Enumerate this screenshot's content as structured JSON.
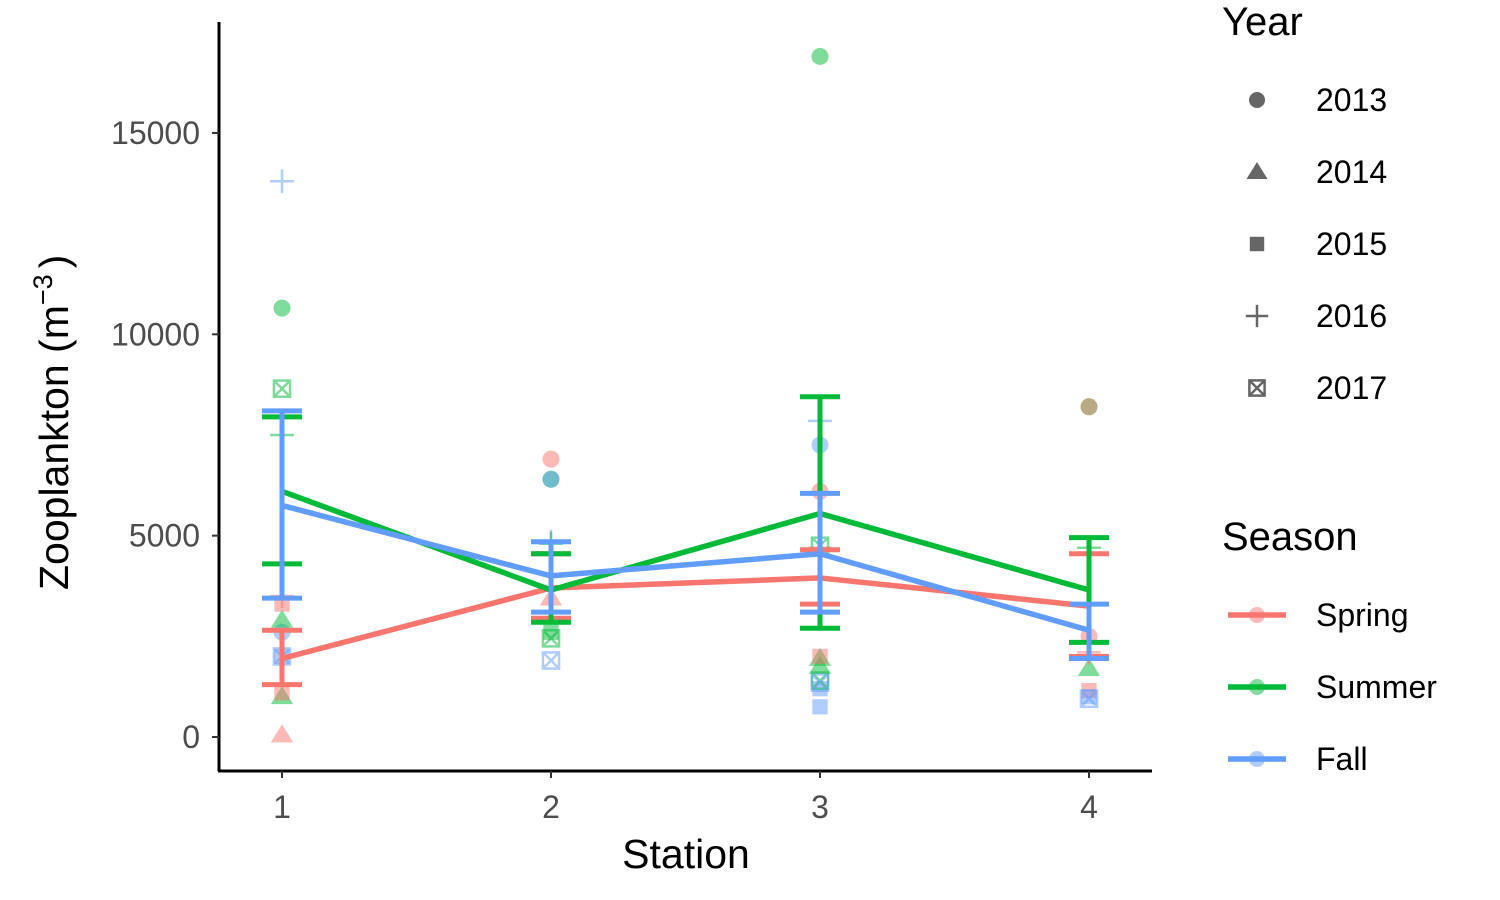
{
  "chart_data": {
    "type": "line",
    "xlabel": "Station",
    "ylabel": "Zooplankton (m",
    "ylabel_sup": "−3",
    "ylabel_close": ")",
    "x_categories": [
      1,
      2,
      3,
      4
    ],
    "ylim": [
      -800,
      17600
    ],
    "y_ticks": [
      0,
      5000,
      10000,
      15000
    ],
    "grid": false,
    "legend_placement": "right",
    "legends": {
      "year": {
        "title": "Year",
        "entries": [
          {
            "label": "2013",
            "shape": "circle"
          },
          {
            "label": "2014",
            "shape": "triangle"
          },
          {
            "label": "2015",
            "shape": "square"
          },
          {
            "label": "2016",
            "shape": "plus"
          },
          {
            "label": "2017",
            "shape": "square-x"
          }
        ]
      },
      "season": {
        "title": "Season",
        "entries": [
          {
            "label": "Spring",
            "color": "#F8766D"
          },
          {
            "label": "Summer",
            "color": "#00BA38"
          },
          {
            "label": "Fall",
            "color": "#619CFF"
          }
        ]
      }
    },
    "series": [
      {
        "name": "Spring",
        "color": "#F8766D",
        "mean": [
          {
            "x": 1,
            "y": 1950
          },
          {
            "x": 2,
            "y": 3700
          },
          {
            "x": 3,
            "y": 3950
          },
          {
            "x": 4,
            "y": 3250
          }
        ],
        "error": [
          {
            "x": 1,
            "low": 1300,
            "high": 2650
          },
          {
            "x": 2,
            "low": 2950,
            "high": 4550
          },
          {
            "x": 3,
            "low": 3300,
            "high": 4650
          },
          {
            "x": 4,
            "low": 2000,
            "high": 4550
          }
        ]
      },
      {
        "name": "Summer",
        "color": "#00BA38",
        "mean": [
          {
            "x": 1,
            "y": 6100
          },
          {
            "x": 2,
            "y": 3650
          },
          {
            "x": 3,
            "y": 5550
          },
          {
            "x": 4,
            "y": 3650
          }
        ],
        "error": [
          {
            "x": 1,
            "low": 4300,
            "high": 7950
          },
          {
            "x": 2,
            "low": 2850,
            "high": 4550
          },
          {
            "x": 3,
            "low": 2700,
            "high": 8450
          },
          {
            "x": 4,
            "low": 2350,
            "high": 4950
          }
        ]
      },
      {
        "name": "Fall",
        "color": "#619CFF",
        "mean": [
          {
            "x": 1,
            "y": 5750
          },
          {
            "x": 2,
            "y": 4000
          },
          {
            "x": 3,
            "y": 4550
          },
          {
            "x": 4,
            "y": 2650
          }
        ],
        "error": [
          {
            "x": 1,
            "low": 3450,
            "high": 8100
          },
          {
            "x": 2,
            "low": 3100,
            "high": 4850
          },
          {
            "x": 3,
            "low": 3100,
            "high": 6050
          },
          {
            "x": 4,
            "low": 1950,
            "high": 3300
          }
        ]
      }
    ],
    "points": [
      {
        "season": "Summer",
        "year": "2013",
        "x": 1,
        "y": 10650
      },
      {
        "season": "Summer",
        "year": "2013",
        "x": 3,
        "y": 16900
      },
      {
        "season": "Summer",
        "year": "2013",
        "x": 4,
        "y": 8200
      },
      {
        "season": "Spring",
        "year": "2013",
        "x": 2,
        "y": 6900
      },
      {
        "season": "Summer",
        "year": "2013",
        "x": 2,
        "y": 6400
      },
      {
        "season": "Fall",
        "year": "2013",
        "x": 2,
        "y": 6400
      },
      {
        "season": "Fall",
        "year": "2013",
        "x": 3,
        "y": 7250
      },
      {
        "season": "Spring",
        "year": "2013",
        "x": 3,
        "y": 6100
      },
      {
        "season": "Spring",
        "year": "2013",
        "x": 4,
        "y": 8200
      },
      {
        "season": "Fall",
        "year": "2013",
        "x": 1,
        "y": 2600
      },
      {
        "season": "Spring",
        "year": "2013",
        "x": 4,
        "y": 2500
      },
      {
        "season": "Spring",
        "year": "2014",
        "x": 1,
        "y": 50
      },
      {
        "season": "Summer",
        "year": "2014",
        "x": 1,
        "y": 2900
      },
      {
        "season": "Summer",
        "year": "2014",
        "x": 1,
        "y": 1000
      },
      {
        "season": "Spring",
        "year": "2014",
        "x": 2,
        "y": 3450
      },
      {
        "season": "Summer",
        "year": "2014",
        "x": 3,
        "y": 1950
      },
      {
        "season": "Summer",
        "year": "2014",
        "x": 3,
        "y": 1750
      },
      {
        "season": "Summer",
        "year": "2014",
        "x": 4,
        "y": 1700
      },
      {
        "season": "Spring",
        "year": "2015",
        "x": 1,
        "y": 3300
      },
      {
        "season": "Spring",
        "year": "2015",
        "x": 1,
        "y": 1100
      },
      {
        "season": "Fall",
        "year": "2015",
        "x": 1,
        "y": 2000
      },
      {
        "season": "Summer",
        "year": "2015",
        "x": 2,
        "y": 2600
      },
      {
        "season": "Spring",
        "year": "2015",
        "x": 3,
        "y": 2000
      },
      {
        "season": "Fall",
        "year": "2015",
        "x": 3,
        "y": 750
      },
      {
        "season": "Fall",
        "year": "2015",
        "x": 3,
        "y": 1200
      },
      {
        "season": "Spring",
        "year": "2015",
        "x": 4,
        "y": 1150
      },
      {
        "season": "Fall",
        "year": "2015",
        "x": 4,
        "y": 1000
      },
      {
        "season": "Fall",
        "year": "2016",
        "x": 1,
        "y": 13800
      },
      {
        "season": "Summer",
        "year": "2016",
        "x": 1,
        "y": 7500
      },
      {
        "season": "Spring",
        "year": "2016",
        "x": 1,
        "y": 3500
      },
      {
        "season": "Fall",
        "year": "2016",
        "x": 2,
        "y": 4850
      },
      {
        "season": "Summer",
        "year": "2016",
        "x": 2,
        "y": 4800
      },
      {
        "season": "Fall",
        "year": "2016",
        "x": 3,
        "y": 7850
      },
      {
        "season": "Spring",
        "year": "2016",
        "x": 3,
        "y": 4700
      },
      {
        "season": "Summer",
        "year": "2016",
        "x": 4,
        "y": 4700
      },
      {
        "season": "Spring",
        "year": "2016",
        "x": 4,
        "y": 2100
      },
      {
        "season": "Summer",
        "year": "2017",
        "x": 1,
        "y": 8650
      },
      {
        "season": "Fall",
        "year": "2017",
        "x": 1,
        "y": 2000
      },
      {
        "season": "Fall",
        "year": "2017",
        "x": 2,
        "y": 1900
      },
      {
        "season": "Summer",
        "year": "2017",
        "x": 2,
        "y": 2450
      },
      {
        "season": "Summer",
        "year": "2017",
        "x": 3,
        "y": 4750
      },
      {
        "season": "Summer",
        "year": "2017",
        "x": 3,
        "y": 1400
      },
      {
        "season": "Fall",
        "year": "2017",
        "x": 3,
        "y": 1350
      },
      {
        "season": "Fall",
        "year": "2017",
        "x": 4,
        "y": 950
      }
    ]
  }
}
